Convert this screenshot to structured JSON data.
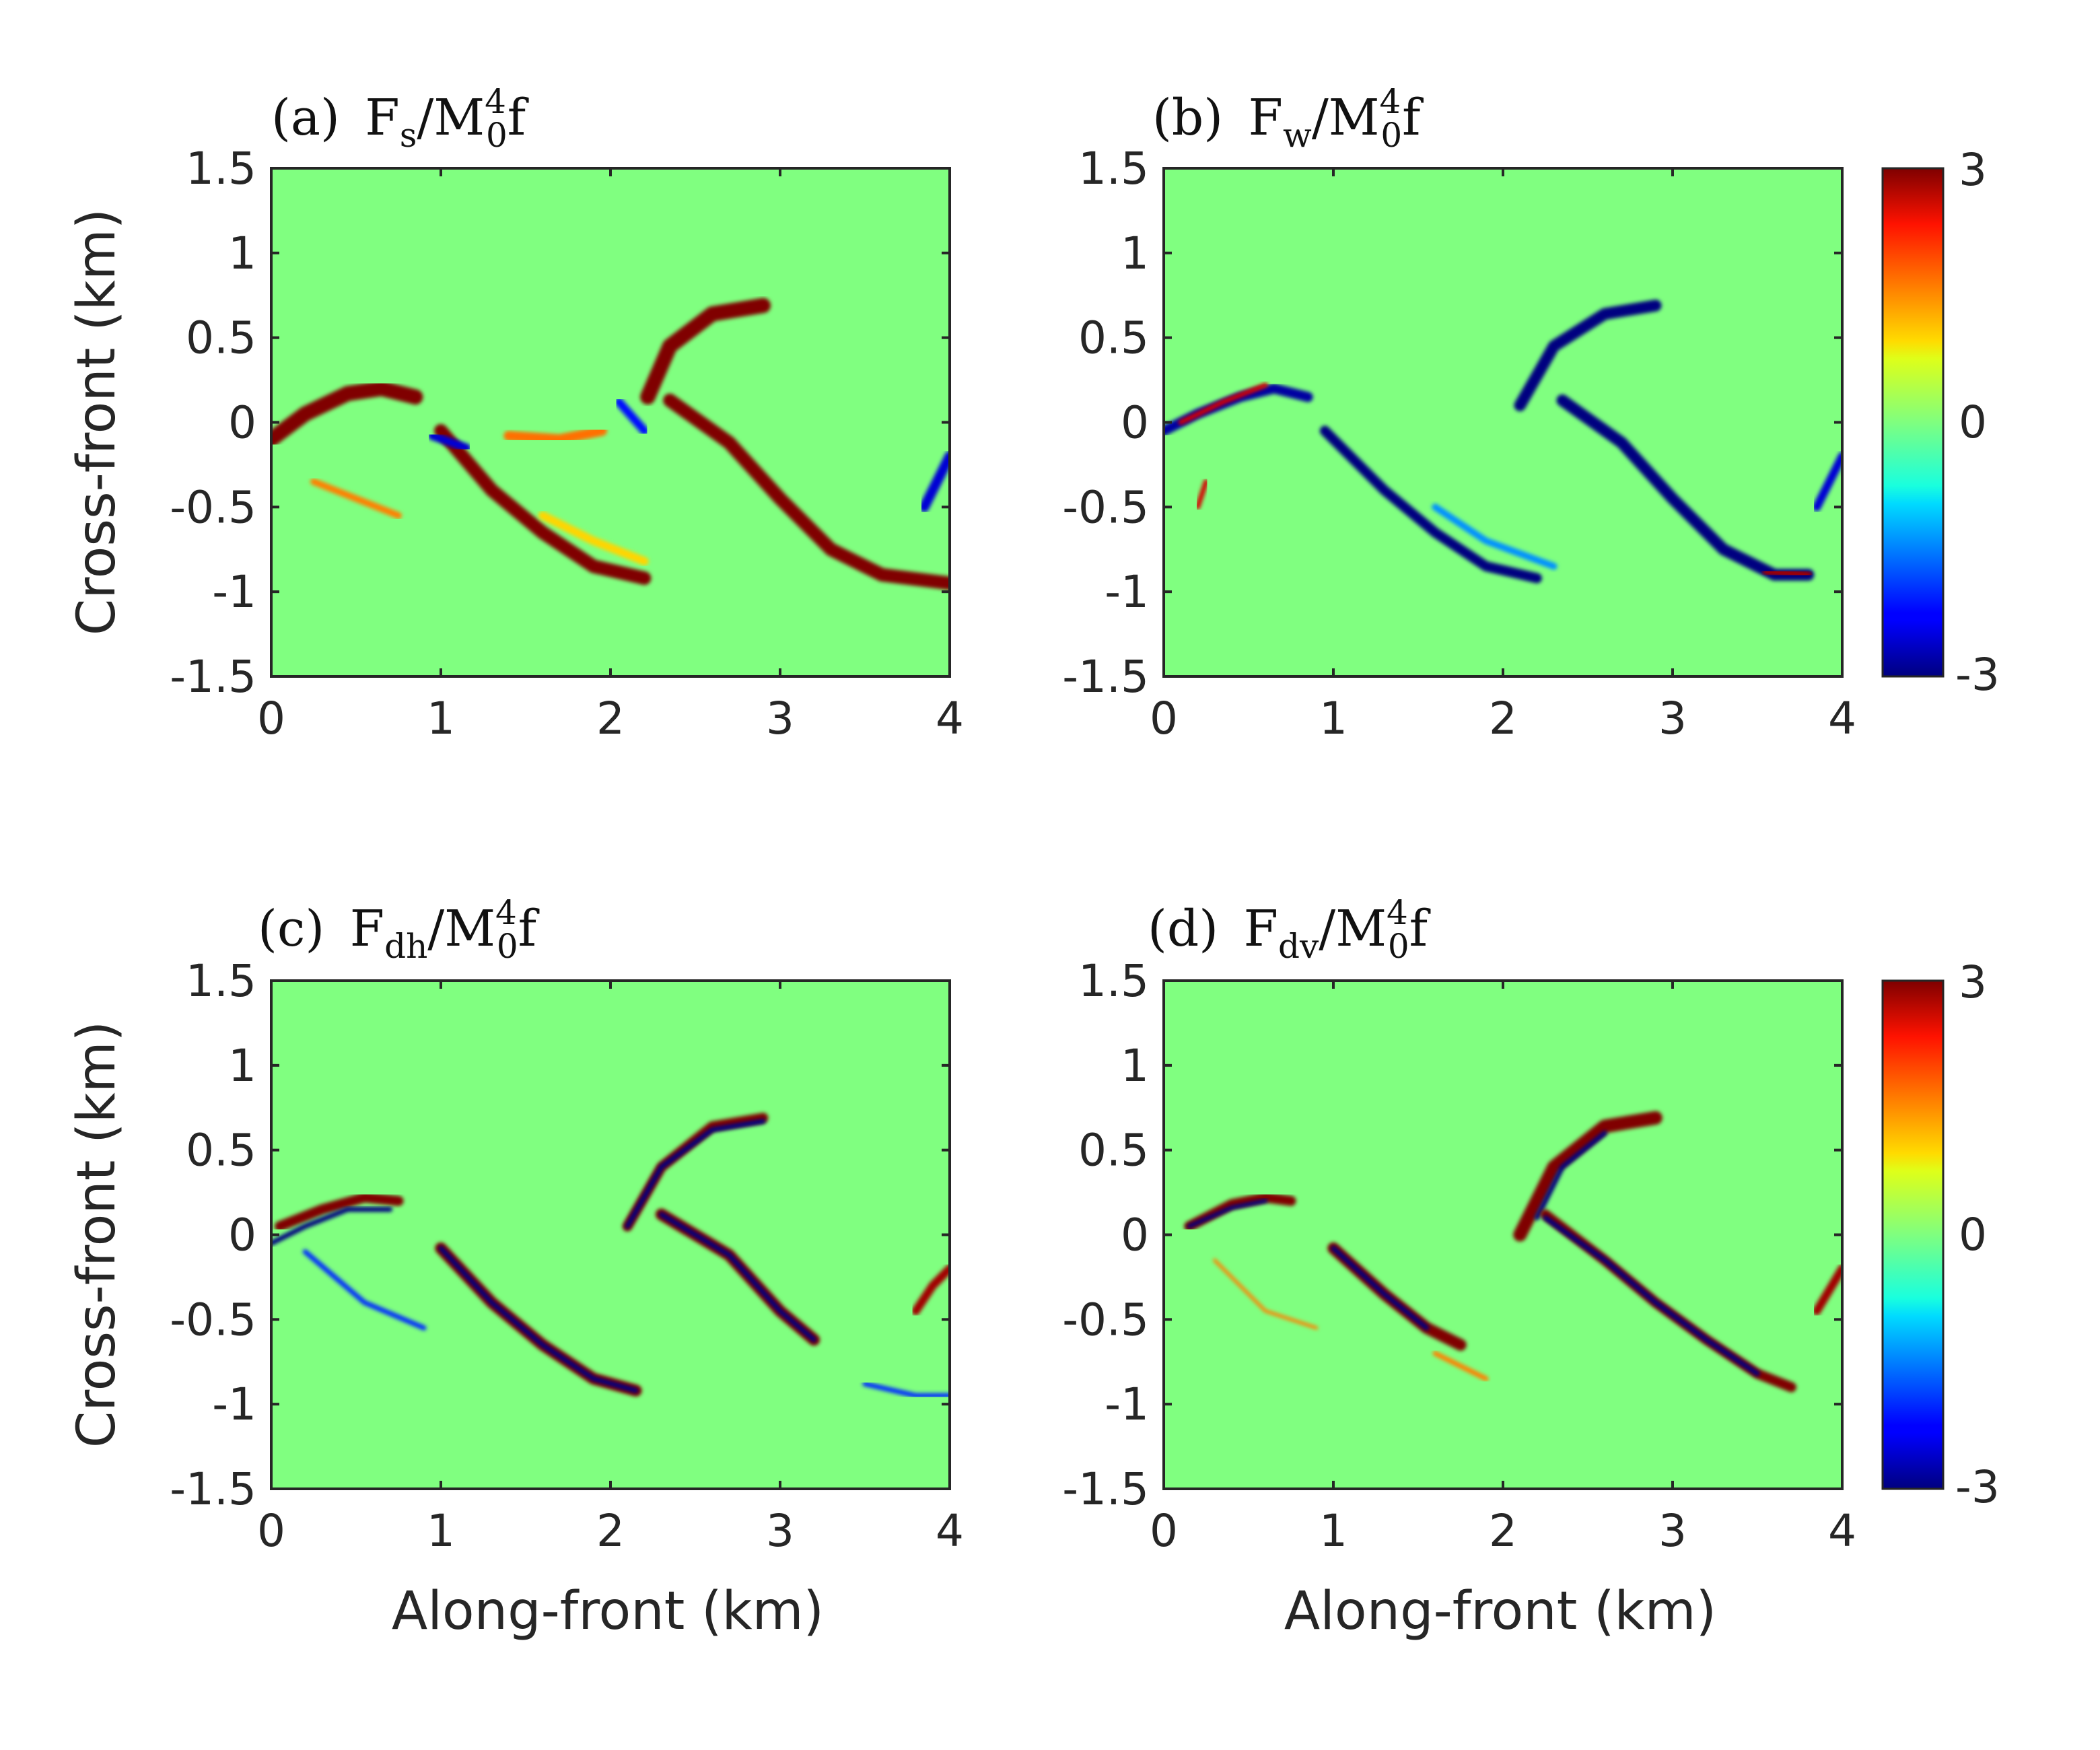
{
  "figure": {
    "colormap": "jet",
    "background_value_color": "#80ff80",
    "axis_color": "#262626"
  },
  "chart_data": [
    {
      "type": "heatmap",
      "panel": "a",
      "title": {
        "label": "(a)",
        "var": "F",
        "sub": "s",
        "den": "M",
        "den_sub": "0",
        "den_sup": "4",
        "tail": "f"
      },
      "xlabel": "",
      "ylabel": "Cross-front (km)",
      "xlim": [
        0,
        4
      ],
      "ylim": [
        -1.5,
        1.5
      ],
      "xticks": [
        "0",
        "1",
        "2",
        "3",
        "4"
      ],
      "yticks": [
        "1.5",
        "1",
        "0.5",
        "0",
        "-0.5",
        "-1",
        "-1.5"
      ],
      "clim": [
        -3,
        3
      ],
      "features": [
        {
          "points": [
            [
              0.0,
              -0.1
            ],
            [
              0.2,
              0.05
            ],
            [
              0.45,
              0.17
            ],
            [
              0.65,
              0.2
            ],
            [
              0.85,
              0.15
            ]
          ],
          "value": 3.0,
          "width": 0.09
        },
        {
          "points": [
            [
              1.0,
              -0.05
            ],
            [
              1.3,
              -0.4
            ],
            [
              1.6,
              -0.65
            ],
            [
              1.9,
              -0.85
            ],
            [
              2.2,
              -0.92
            ]
          ],
          "value": 3.0,
          "width": 0.08
        },
        {
          "points": [
            [
              2.22,
              0.15
            ],
            [
              2.35,
              0.45
            ],
            [
              2.6,
              0.64
            ],
            [
              2.9,
              0.69
            ]
          ],
          "value": 3.0,
          "width": 0.09
        },
        {
          "points": [
            [
              2.35,
              0.13
            ],
            [
              2.7,
              -0.12
            ],
            [
              3.0,
              -0.45
            ],
            [
              3.3,
              -0.75
            ],
            [
              3.6,
              -0.9
            ],
            [
              4.0,
              -0.95
            ]
          ],
          "value": 3.0,
          "width": 0.08
        },
        {
          "points": [
            [
              1.4,
              -0.08
            ],
            [
              1.7,
              -0.1
            ],
            [
              1.95,
              -0.05
            ]
          ],
          "value": 1.6,
          "width": 0.06
        },
        {
          "points": [
            [
              0.95,
              -0.08
            ],
            [
              1.15,
              -0.15
            ]
          ],
          "value": -2.5,
          "width": 0.05
        },
        {
          "points": [
            [
              2.05,
              0.12
            ],
            [
              2.2,
              -0.05
            ]
          ],
          "value": -2.2,
          "width": 0.05
        },
        {
          "points": [
            [
              3.85,
              -0.5
            ],
            [
              3.95,
              -0.3
            ],
            [
              4.0,
              -0.2
            ]
          ],
          "value": -2.5,
          "width": 0.06
        },
        {
          "points": [
            [
              0.25,
              -0.35
            ],
            [
              0.5,
              -0.45
            ],
            [
              0.75,
              -0.55
            ]
          ],
          "value": 1.5,
          "width": 0.04
        },
        {
          "points": [
            [
              1.6,
              -0.55
            ],
            [
              1.9,
              -0.7
            ],
            [
              2.2,
              -0.82
            ]
          ],
          "value": 1.0,
          "width": 0.05
        }
      ]
    },
    {
      "type": "heatmap",
      "panel": "b",
      "title": {
        "label": "(b)",
        "var": "F",
        "sub": "w",
        "den": "M",
        "den_sub": "0",
        "den_sup": "4",
        "tail": "f"
      },
      "xlabel": "",
      "ylabel": "",
      "xlim": [
        0,
        4
      ],
      "ylim": [
        -1.5,
        1.5
      ],
      "xticks": [
        "0",
        "1",
        "2",
        "3",
        "4"
      ],
      "yticks": [
        "1.5",
        "1",
        "0.5",
        "0",
        "-0.5",
        "-1",
        "-1.5"
      ],
      "clim": [
        -3,
        3
      ],
      "features": [
        {
          "points": [
            [
              0.0,
              -0.05
            ],
            [
              0.2,
              0.05
            ],
            [
              0.45,
              0.15
            ],
            [
              0.65,
              0.2
            ],
            [
              0.85,
              0.15
            ]
          ],
          "value": -2.8,
          "width": 0.06
        },
        {
          "points": [
            [
              0.1,
              0.0
            ],
            [
              0.35,
              0.12
            ],
            [
              0.6,
              0.22
            ]
          ],
          "value": 2.5,
          "width": 0.03
        },
        {
          "points": [
            [
              0.95,
              -0.05
            ],
            [
              1.3,
              -0.4
            ],
            [
              1.6,
              -0.65
            ],
            [
              1.9,
              -0.85
            ],
            [
              2.2,
              -0.92
            ]
          ],
          "value": -3.0,
          "width": 0.06
        },
        {
          "points": [
            [
              2.1,
              0.1
            ],
            [
              2.3,
              0.45
            ],
            [
              2.6,
              0.64
            ],
            [
              2.9,
              0.69
            ]
          ],
          "value": -3.0,
          "width": 0.07
        },
        {
          "points": [
            [
              2.35,
              0.13
            ],
            [
              2.7,
              -0.12
            ],
            [
              3.0,
              -0.45
            ],
            [
              3.3,
              -0.75
            ],
            [
              3.6,
              -0.9
            ],
            [
              3.8,
              -0.9
            ]
          ],
          "value": -3.0,
          "width": 0.07
        },
        {
          "points": [
            [
              3.55,
              -0.88
            ],
            [
              3.8,
              -0.9
            ]
          ],
          "value": 2.8,
          "width": 0.04
        },
        {
          "points": [
            [
              3.85,
              -0.5
            ],
            [
              4.0,
              -0.2
            ]
          ],
          "value": -2.5,
          "width": 0.05
        },
        {
          "points": [
            [
              0.2,
              -0.5
            ],
            [
              0.25,
              -0.35
            ]
          ],
          "value": 2.5,
          "width": 0.03
        },
        {
          "points": [
            [
              1.6,
              -0.5
            ],
            [
              1.9,
              -0.7
            ],
            [
              2.3,
              -0.85
            ]
          ],
          "value": -1.4,
          "width": 0.04
        }
      ]
    },
    {
      "type": "heatmap",
      "panel": "c",
      "title": {
        "label": "(c)",
        "var": "F",
        "sub": "dh",
        "den": "M",
        "den_sub": "0",
        "den_sup": "4",
        "tail": "f"
      },
      "xlabel": "Along-front (km)",
      "ylabel": "Cross-front (km)",
      "xlim": [
        0,
        4
      ],
      "ylim": [
        -1.5,
        1.5
      ],
      "xticks": [
        "0",
        "1",
        "2",
        "3",
        "4"
      ],
      "yticks": [
        "1.5",
        "1",
        "0.5",
        "0",
        "-0.5",
        "-1",
        "-1.5"
      ],
      "clim": [
        -3,
        3
      ],
      "features": [
        {
          "points": [
            [
              0.05,
              0.05
            ],
            [
              0.3,
              0.15
            ],
            [
              0.55,
              0.22
            ],
            [
              0.75,
              0.2
            ]
          ],
          "value": 3.0,
          "width": 0.06
        },
        {
          "points": [
            [
              0.0,
              -0.05
            ],
            [
              0.2,
              0.05
            ],
            [
              0.45,
              0.15
            ],
            [
              0.7,
              0.15
            ]
          ],
          "value": -3.0,
          "width": 0.03
        },
        {
          "points": [
            [
              1.0,
              -0.08
            ],
            [
              1.3,
              -0.4
            ],
            [
              1.6,
              -0.65
            ],
            [
              1.9,
              -0.85
            ],
            [
              2.15,
              -0.92
            ]
          ],
          "value": 3.0,
          "width": 0.07
        },
        {
          "points": [
            [
              1.0,
              -0.08
            ],
            [
              1.3,
              -0.4
            ],
            [
              1.6,
              -0.65
            ],
            [
              1.9,
              -0.85
            ],
            [
              2.15,
              -0.92
            ]
          ],
          "value": -3.0,
          "width": 0.03
        },
        {
          "points": [
            [
              2.1,
              0.05
            ],
            [
              2.3,
              0.4
            ],
            [
              2.6,
              0.64
            ],
            [
              2.9,
              0.69
            ]
          ],
          "value": 3.0,
          "width": 0.06
        },
        {
          "points": [
            [
              2.1,
              0.05
            ],
            [
              2.3,
              0.4
            ],
            [
              2.6,
              0.62
            ],
            [
              2.9,
              0.67
            ]
          ],
          "value": -3.0,
          "width": 0.03
        },
        {
          "points": [
            [
              2.3,
              0.12
            ],
            [
              2.7,
              -0.12
            ],
            [
              3.0,
              -0.45
            ],
            [
              3.2,
              -0.62
            ]
          ],
          "value": 3.0,
          "width": 0.07
        },
        {
          "points": [
            [
              2.3,
              0.12
            ],
            [
              2.7,
              -0.12
            ],
            [
              3.0,
              -0.45
            ],
            [
              3.2,
              -0.62
            ]
          ],
          "value": -3.0,
          "width": 0.03
        },
        {
          "points": [
            [
              3.5,
              -0.88
            ],
            [
              3.8,
              -0.95
            ],
            [
              4.0,
              -0.95
            ]
          ],
          "value": -2.0,
          "width": 0.03
        },
        {
          "points": [
            [
              3.8,
              -0.45
            ],
            [
              3.9,
              -0.3
            ],
            [
              4.0,
              -0.2
            ]
          ],
          "value": 2.8,
          "width": 0.05
        },
        {
          "points": [
            [
              0.2,
              -0.1
            ],
            [
              0.55,
              -0.4
            ],
            [
              0.9,
              -0.55
            ]
          ],
          "value": -2.0,
          "width": 0.03
        }
      ]
    },
    {
      "type": "heatmap",
      "panel": "d",
      "title": {
        "label": "(d)",
        "var": "F",
        "sub": "dv",
        "den": "M",
        "den_sub": "0",
        "den_sup": "4",
        "tail": "f"
      },
      "xlabel": "Along-front (km)",
      "ylabel": "",
      "xlim": [
        0,
        4
      ],
      "ylim": [
        -1.5,
        1.5
      ],
      "xticks": [
        "0",
        "1",
        "2",
        "3",
        "4"
      ],
      "yticks": [
        "1.5",
        "1",
        "0.5",
        "0",
        "-0.5",
        "-1",
        "-1.5"
      ],
      "clim": [
        -3,
        3
      ],
      "features": [
        {
          "points": [
            [
              0.15,
              0.05
            ],
            [
              0.4,
              0.18
            ],
            [
              0.6,
              0.22
            ],
            [
              0.75,
              0.2
            ]
          ],
          "value": 3.0,
          "width": 0.06
        },
        {
          "points": [
            [
              0.15,
              0.05
            ],
            [
              0.4,
              0.16
            ],
            [
              0.6,
              0.2
            ]
          ],
          "value": -3.0,
          "width": 0.025
        },
        {
          "points": [
            [
              1.0,
              -0.08
            ],
            [
              1.3,
              -0.35
            ],
            [
              1.55,
              -0.55
            ],
            [
              1.75,
              -0.65
            ]
          ],
          "value": 3.0,
          "width": 0.07
        },
        {
          "points": [
            [
              1.0,
              -0.08
            ],
            [
              1.3,
              -0.35
            ],
            [
              1.55,
              -0.55
            ]
          ],
          "value": -3.0,
          "width": 0.03
        },
        {
          "points": [
            [
              2.1,
              0.0
            ],
            [
              2.3,
              0.4
            ],
            [
              2.6,
              0.64
            ],
            [
              2.9,
              0.69
            ]
          ],
          "value": 3.0,
          "width": 0.08
        },
        {
          "points": [
            [
              2.2,
              0.1
            ],
            [
              2.35,
              0.4
            ],
            [
              2.6,
              0.6
            ]
          ],
          "value": -3.0,
          "width": 0.03
        },
        {
          "points": [
            [
              2.25,
              0.12
            ],
            [
              2.6,
              -0.15
            ],
            [
              2.9,
              -0.4
            ],
            [
              3.2,
              -0.62
            ],
            [
              3.5,
              -0.82
            ],
            [
              3.7,
              -0.9
            ]
          ],
          "value": 3.0,
          "width": 0.06
        },
        {
          "points": [
            [
              2.25,
              0.1
            ],
            [
              2.6,
              -0.15
            ],
            [
              2.9,
              -0.4
            ],
            [
              3.2,
              -0.62
            ],
            [
              3.5,
              -0.82
            ]
          ],
          "value": -3.0,
          "width": 0.03
        },
        {
          "points": [
            [
              3.85,
              -0.45
            ],
            [
              4.0,
              -0.2
            ]
          ],
          "value": 2.8,
          "width": 0.05
        },
        {
          "points": [
            [
              1.6,
              -0.7
            ],
            [
              1.9,
              -0.85
            ]
          ],
          "value": 1.5,
          "width": 0.03
        },
        {
          "points": [
            [
              0.3,
              -0.15
            ],
            [
              0.6,
              -0.45
            ],
            [
              0.9,
              -0.55
            ]
          ],
          "value": 1.5,
          "width": 0.02
        }
      ]
    }
  ],
  "colorbars": [
    {
      "min_label": "-3",
      "mid_label": "0",
      "max_label": "3",
      "clim": [
        -3,
        3
      ]
    },
    {
      "min_label": "-3",
      "mid_label": "0",
      "max_label": "3",
      "clim": [
        -3,
        3
      ]
    }
  ]
}
